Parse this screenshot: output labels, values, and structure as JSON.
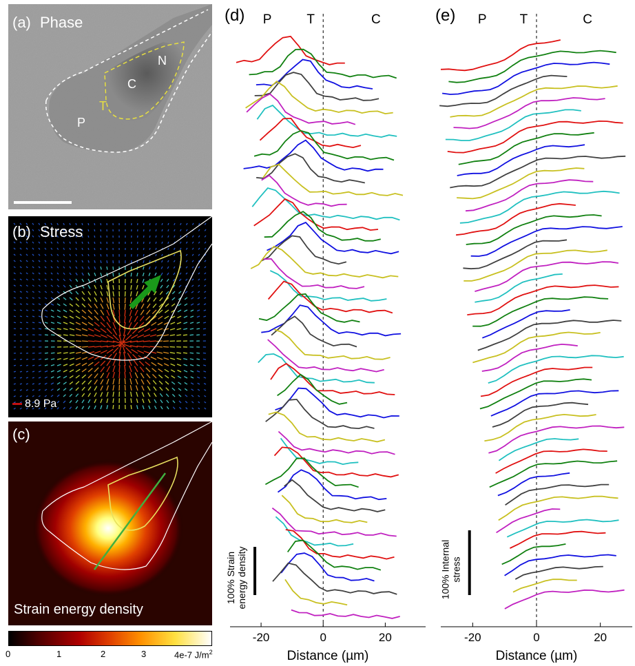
{
  "panel_a": {
    "label": "(a)",
    "title": "Phase",
    "region_labels": {
      "N": "N",
      "C": "C",
      "T": "T",
      "P": "P"
    }
  },
  "panel_b": {
    "label": "(b)",
    "title": "Stress",
    "scale_label": "8.9 Pa"
  },
  "panel_c": {
    "label": "(c)",
    "title": "Strain energy density",
    "colorbar": {
      "ticks": [
        "0",
        "1",
        "2",
        "3",
        "4e-7 J/m"
      ],
      "unit_superscript": "2"
    }
  },
  "chart_data": [
    {
      "type": "line",
      "panel": "(d)",
      "region_labels": [
        "P",
        "T",
        "C"
      ],
      "xlabel_prefix": "Distance (",
      "xlabel_unit": "µm",
      "xlabel_suffix": ")",
      "xticks": [
        "-20",
        "0",
        "20"
      ],
      "xlim": [
        -30,
        33
      ],
      "scale_bar_label_line1": "100% Strain",
      "scale_bar_label_line2": "energy density",
      "reference_line": "dashed vertical at x = 0",
      "stacked_traces": 48
    },
    {
      "type": "line",
      "panel": "(e)",
      "region_labels": [
        "P",
        "T",
        "C"
      ],
      "xlabel_prefix": "Distance (",
      "xlabel_unit": "µm",
      "xlabel_suffix": ")",
      "xticks": [
        "-20",
        "0",
        "20"
      ],
      "xlim": [
        -30,
        30
      ],
      "scale_bar_label_line1": "100% Internal",
      "scale_bar_label_line2": "stress",
      "reference_line": "dashed vertical at x = 0",
      "stacked_traces": 48
    }
  ],
  "trace_colors": [
    "#e01010",
    "#108010",
    "#1010e0",
    "#404040",
    "#c8c020",
    "#c020c0",
    "#20c0c0"
  ]
}
